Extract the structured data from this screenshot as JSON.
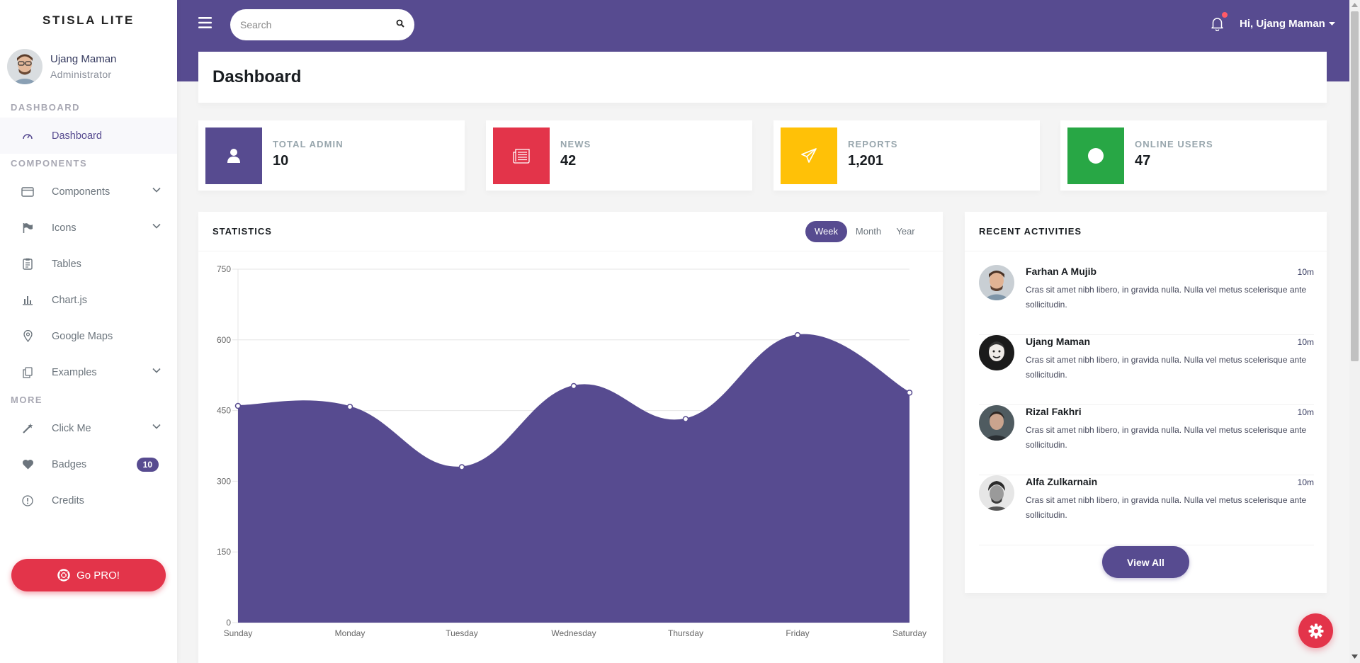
{
  "brand": "STISLA LITE",
  "user": {
    "name": "Ujang Maman",
    "role": "Administrator"
  },
  "sidebar": {
    "headers": [
      "DASHBOARD",
      "COMPONENTS",
      "MORE"
    ],
    "items": [
      {
        "label": "Dashboard",
        "icon": "dashboard-icon",
        "active": true
      },
      {
        "label": "Components",
        "icon": "window-icon",
        "dropdown": true
      },
      {
        "label": "Icons",
        "icon": "flag-icon",
        "dropdown": true
      },
      {
        "label": "Tables",
        "icon": "clipboard-icon"
      },
      {
        "label": "Chart.js",
        "icon": "bar-chart-icon"
      },
      {
        "label": "Google Maps",
        "icon": "map-pin-icon"
      },
      {
        "label": "Examples",
        "icon": "copy-icon",
        "dropdown": true
      },
      {
        "label": "Click Me",
        "icon": "magic-wand-icon",
        "dropdown": true
      },
      {
        "label": "Badges",
        "icon": "heart-icon",
        "badge": "10"
      },
      {
        "label": "Credits",
        "icon": "info-icon"
      }
    ],
    "pro_button": "Go PRO!"
  },
  "topbar": {
    "search_placeholder": "Search",
    "greeting": "Hi, Ujang Maman"
  },
  "page_title": "Dashboard",
  "stats": [
    {
      "label": "TOTAL ADMIN",
      "value": "10",
      "color": "#574b90",
      "icon": "user-icon"
    },
    {
      "label": "NEWS",
      "value": "42",
      "color": "#e3344a",
      "icon": "newspaper-icon"
    },
    {
      "label": "REPORTS",
      "value": "1,201",
      "color": "#ffc107",
      "icon": "paper-plane-icon"
    },
    {
      "label": "ONLINE USERS",
      "value": "47",
      "color": "#28a745",
      "icon": "circle-icon"
    }
  ],
  "statistics": {
    "title": "STATISTICS",
    "ranges": [
      "Week",
      "Month",
      "Year"
    ],
    "active_range": "Week"
  },
  "chart_data": {
    "type": "area",
    "categories": [
      "Sunday",
      "Monday",
      "Tuesday",
      "Wednesday",
      "Thursday",
      "Friday",
      "Saturday"
    ],
    "series": [
      {
        "values": [
          460,
          458,
          330,
          502,
          432,
          610,
          488
        ]
      }
    ],
    "ylim": [
      0,
      750
    ],
    "yticks": [
      0,
      150,
      300,
      450,
      600,
      750
    ],
    "grid": true,
    "color": "#574b90"
  },
  "activities": {
    "title": "RECENT ACTIVITIES",
    "items": [
      {
        "name": "Farhan A Mujib",
        "time": "10m",
        "text": "Cras sit amet nibh libero, in gravida nulla. Nulla vel metus scelerisque ante sollicitudin."
      },
      {
        "name": "Ujang Maman",
        "time": "10m",
        "text": "Cras sit amet nibh libero, in gravida nulla. Nulla vel metus scelerisque ante sollicitudin."
      },
      {
        "name": "Rizal Fakhri",
        "time": "10m",
        "text": "Cras sit amet nibh libero, in gravida nulla. Nulla vel metus scelerisque ante sollicitudin."
      },
      {
        "name": "Alfa Zulkarnain",
        "time": "10m",
        "text": "Cras sit amet nibh libero, in gravida nulla. Nulla vel metus scelerisque ante sollicitudin."
      }
    ],
    "view_all": "View All"
  }
}
